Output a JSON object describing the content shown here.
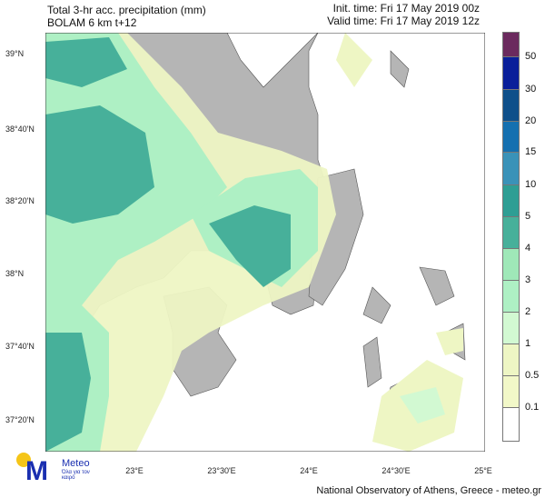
{
  "header": {
    "title": "Total 3-hr acc. precipitation (mm)",
    "model": "BOLAM 6 km t+12",
    "init_time": "Init. time: Fri 17 May 2019 00z",
    "valid_time": "Valid time: Fri 17 May 2019 12z"
  },
  "lat_labels": [
    "39°N",
    "38°40'N",
    "38°20'N",
    "38°N",
    "37°40'N",
    "37°20'N"
  ],
  "lon_labels": [
    "23°E",
    "23°30'E",
    "24°E",
    "24°30'E",
    "25°E"
  ],
  "colorbar": {
    "labels": [
      "50",
      "30",
      "20",
      "15",
      "10",
      "5",
      "4",
      "3",
      "2",
      "1",
      "0.5",
      "0.1"
    ],
    "colors": [
      "#6b2a5e",
      "#0a1f9a",
      "#0e4f8a",
      "#1570b0",
      "#3a92b8",
      "#2e9e94",
      "#47b09a",
      "#9fe8b8",
      "#aef0c4",
      "#d2f9d2",
      "#eef6c4",
      "#f2f8c8",
      "#ffffff"
    ]
  },
  "logo": {
    "name": "Meteo",
    "tagline": "Όλα για τον καιρό"
  },
  "footer": "National Observatory of Athens, Greece - meteo.gr"
}
